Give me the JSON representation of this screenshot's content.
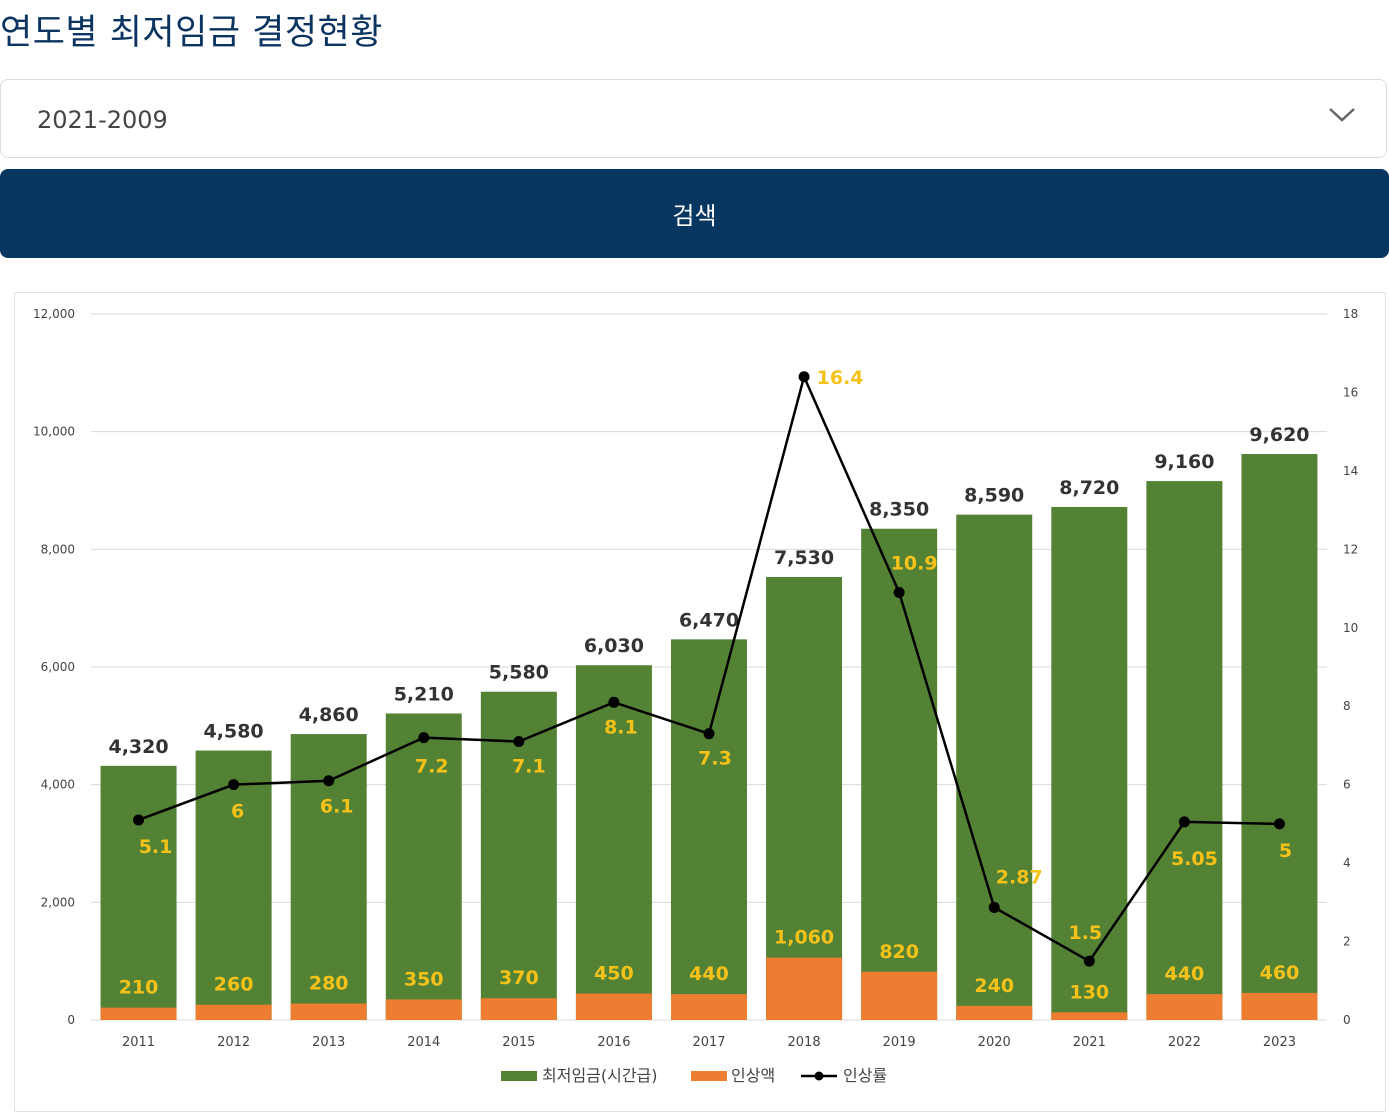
{
  "page": {
    "title": "연도별 최저임금 결정현황"
  },
  "filter": {
    "selected": "2021-2009",
    "search_label": "검색"
  },
  "colors": {
    "minwage": "#548235",
    "increase": "#ed7d31",
    "rate": "#000000",
    "label_yellow": "#f6c21a",
    "button": "#073660",
    "title": "#0b3560"
  },
  "chart_data": {
    "type": "bar",
    "categories": [
      "2011",
      "2012",
      "2013",
      "2014",
      "2015",
      "2016",
      "2017",
      "2018",
      "2019",
      "2020",
      "2021",
      "2022",
      "2023"
    ],
    "series": [
      {
        "name": "최저임금(시간급)",
        "type": "bar",
        "axis": "left",
        "values": [
          4320,
          4580,
          4860,
          5210,
          5580,
          6030,
          6470,
          7530,
          8350,
          8590,
          8720,
          9160,
          9620
        ],
        "labels": [
          "4,320",
          "4,580",
          "4,860",
          "5,210",
          "5,580",
          "6,030",
          "6,470",
          "7,530",
          "8,350",
          "8,590",
          "8,720",
          "9,160",
          "9,620"
        ]
      },
      {
        "name": "인상액",
        "type": "bar",
        "axis": "left",
        "values": [
          210,
          260,
          280,
          350,
          370,
          450,
          440,
          1060,
          820,
          240,
          130,
          440,
          460
        ],
        "labels": [
          "210",
          "260",
          "280",
          "350",
          "370",
          "450",
          "440",
          "1,060",
          "820",
          "240",
          "130",
          "440",
          "460"
        ]
      },
      {
        "name": "인상률",
        "type": "line",
        "axis": "right",
        "values": [
          5.1,
          6,
          6.1,
          7.2,
          7.1,
          8.1,
          7.3,
          16.4,
          10.9,
          2.87,
          1.5,
          5.05,
          5
        ],
        "labels": [
          "5.1",
          "6",
          "6.1",
          "7.2",
          "7.1",
          "8.1",
          "7.3",
          "16.4",
          "10.9",
          "2.87",
          "1.5",
          "5.05",
          "5"
        ]
      }
    ],
    "y_left": {
      "ylim": [
        0,
        12000
      ],
      "ticks": [
        "0",
        "2,000",
        "4,000",
        "6,000",
        "8,000",
        "10,000",
        "12,000"
      ],
      "tick_values": [
        0,
        2000,
        4000,
        6000,
        8000,
        10000,
        12000
      ]
    },
    "y_right": {
      "ylim": [
        0,
        18
      ],
      "ticks": [
        "0",
        "2",
        "4",
        "6",
        "8",
        "10",
        "12",
        "14",
        "16",
        "18"
      ],
      "tick_values": [
        0,
        2,
        4,
        6,
        8,
        10,
        12,
        14,
        16,
        18
      ]
    },
    "legend": [
      "최저임금(시간급)",
      "인상액",
      "인상률"
    ],
    "legend_position": "bottom",
    "grid": true
  }
}
